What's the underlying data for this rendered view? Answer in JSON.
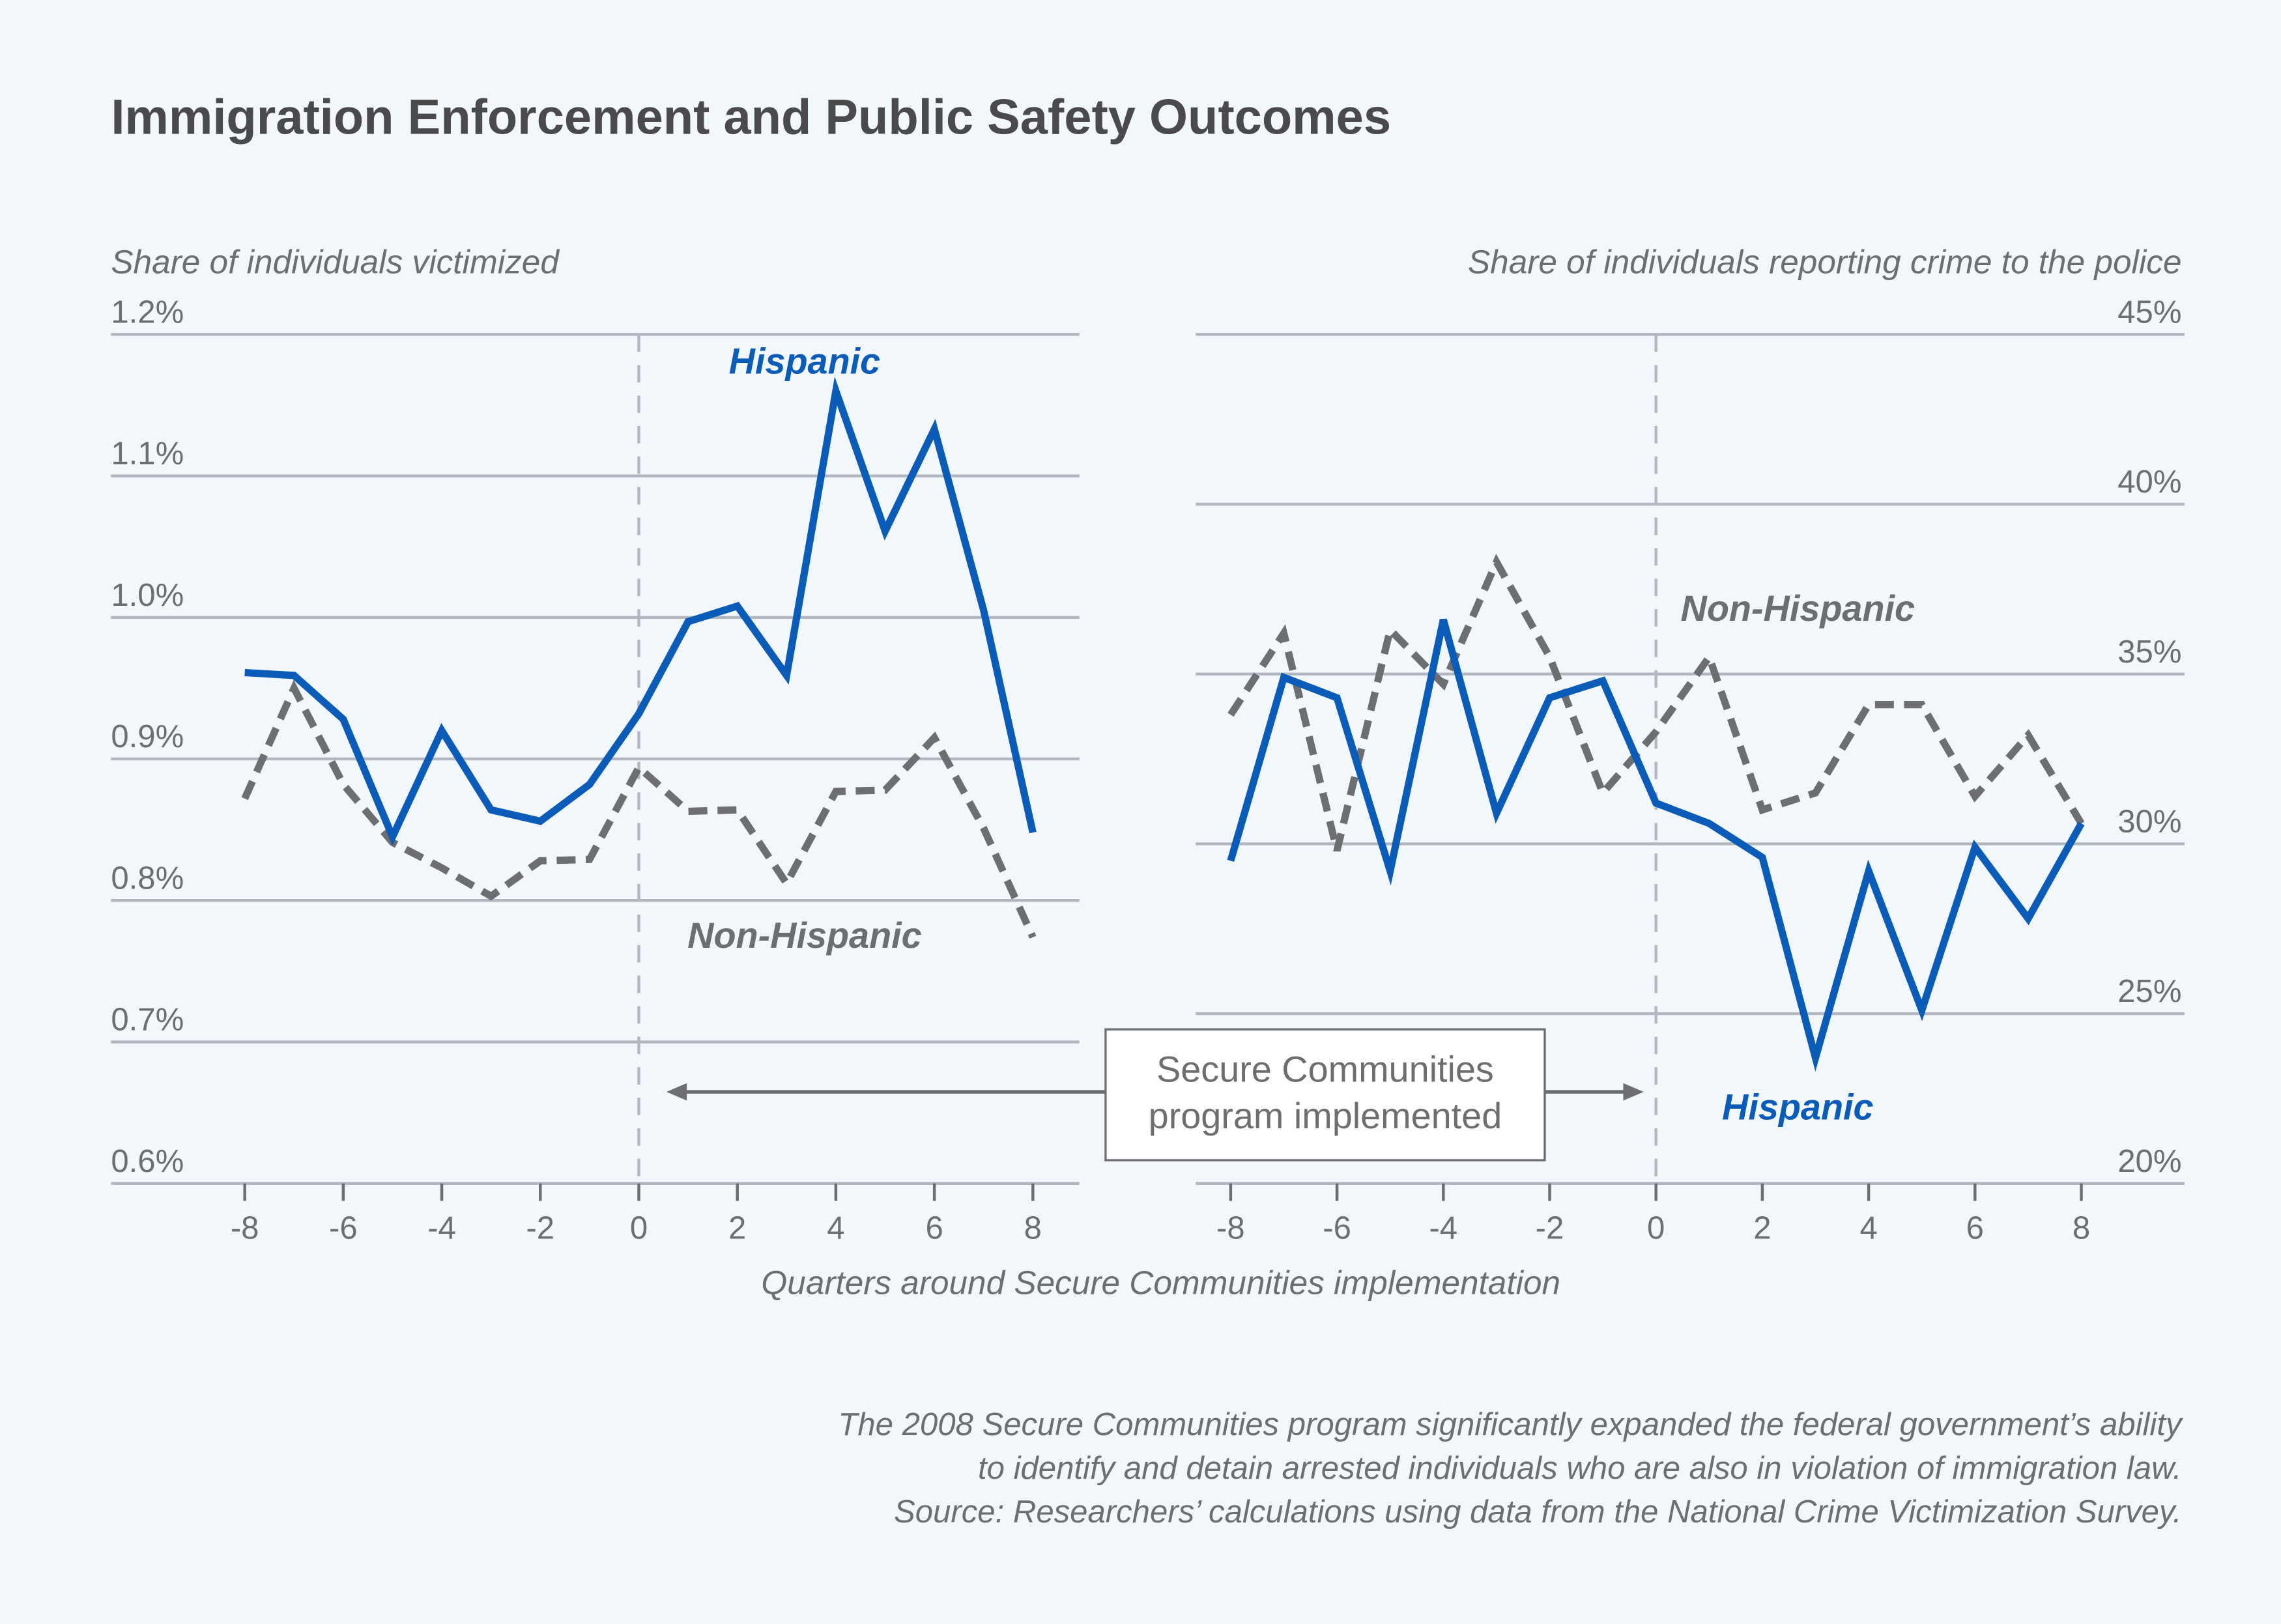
{
  "title": "Immigration Enforcement and Public Safety Outcomes",
  "colors": {
    "background": "#f2f7fb",
    "hispanic": "#0a5cb8",
    "non_hispanic": "#6d6e71",
    "grid": "#b3b8c0"
  },
  "annotation": {
    "line1": "Secure Communities",
    "line2": "program implemented"
  },
  "xlabel": "Quarters around Secure Communities implementation",
  "footnote": [
    "The 2008 Secure Communities program significantly expanded the federal government’s ability",
    "to identify and detain arrested individuals who are also in violation of immigration law.",
    "Source: Researchers’ calculations using data from the National Crime Victimization Survey."
  ],
  "chart_data": [
    {
      "type": "line",
      "ylabel": "Share of individuals victimized",
      "x": [
        -8,
        -7,
        -6,
        -5,
        -4,
        -3,
        -2,
        -1,
        0,
        1,
        2,
        3,
        4,
        5,
        6,
        7,
        8
      ],
      "xticks": [
        -8,
        -6,
        -4,
        -2,
        0,
        2,
        4,
        6,
        8
      ],
      "xtick_labels": [
        "-8",
        "-6",
        "-4",
        "-2",
        "0",
        "2",
        "4",
        "6",
        "8"
      ],
      "ylim": [
        0.6,
        1.2
      ],
      "yticks": [
        0.6,
        0.7,
        0.8,
        0.9,
        1.0,
        1.1,
        1.2
      ],
      "ytick_labels": [
        "0.6%",
        "0.7%",
        "0.8%",
        "0.9%",
        "1.0%",
        "1.1%",
        "1.2%"
      ],
      "vline_x": 0,
      "series": [
        {
          "name": "Hispanic",
          "style": "solid",
          "values": [
            0.961,
            0.959,
            0.928,
            0.845,
            0.92,
            0.864,
            0.856,
            0.882,
            0.932,
            0.997,
            1.008,
            0.959,
            1.16,
            1.061,
            1.133,
            1.005,
            0.848
          ]
        },
        {
          "name": "Non-Hispanic",
          "style": "dashed",
          "values": [
            0.872,
            0.95,
            0.882,
            0.841,
            0.823,
            0.803,
            0.828,
            0.829,
            0.894,
            0.863,
            0.864,
            0.812,
            0.877,
            0.878,
            0.915,
            0.851,
            0.774
          ]
        }
      ]
    },
    {
      "type": "line",
      "ylabel": "Share of individuals reporting crime to the police",
      "x": [
        -8,
        -7,
        -6,
        -5,
        -4,
        -3,
        -2,
        -1,
        0,
        1,
        2,
        3,
        4,
        5,
        6,
        7,
        8
      ],
      "xticks": [
        -8,
        -6,
        -4,
        -2,
        0,
        2,
        4,
        6,
        8
      ],
      "xtick_labels": [
        "-8",
        "-6",
        "-4",
        "-2",
        "0",
        "2",
        "4",
        "6",
        "8"
      ],
      "ylim": [
        20,
        45
      ],
      "yticks": [
        20,
        25,
        30,
        35,
        40,
        45
      ],
      "ytick_labels": [
        "20%",
        "25%",
        "30%",
        "35%",
        "40%",
        "45%"
      ],
      "vline_x": 0,
      "series": [
        {
          "name": "Hispanic",
          "style": "solid",
          "values": [
            29.5,
            34.9,
            34.3,
            29.2,
            36.6,
            30.9,
            34.3,
            34.8,
            31.2,
            30.6,
            29.6,
            23.7,
            29.2,
            25.1,
            29.9,
            27.8,
            30.6
          ]
        },
        {
          "name": "Non-Hispanic",
          "style": "dashed",
          "values": [
            33.8,
            36.2,
            29.8,
            36.3,
            34.7,
            38.3,
            35.5,
            31.5,
            33.3,
            35.5,
            31.0,
            31.5,
            34.1,
            34.1,
            31.4,
            33.2,
            30.6
          ]
        }
      ]
    }
  ]
}
